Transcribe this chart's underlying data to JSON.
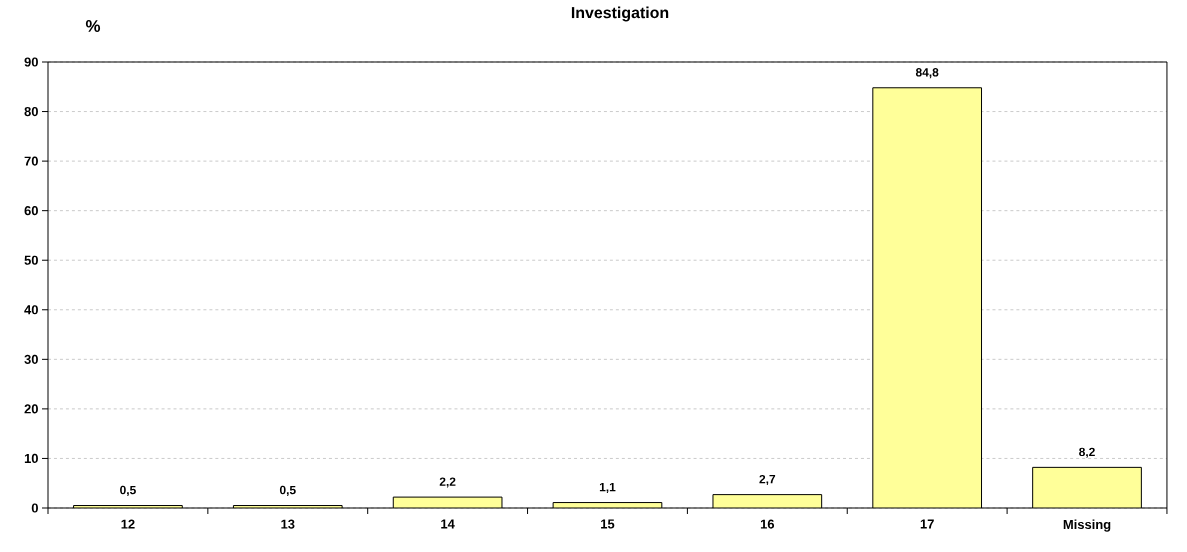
{
  "chart_data": {
    "type": "bar",
    "title": "Investigation",
    "ylabel": "%",
    "categories": [
      "12",
      "13",
      "14",
      "15",
      "16",
      "17",
      "Missing"
    ],
    "values": [
      0.5,
      0.5,
      2.2,
      1.1,
      2.7,
      84.8,
      8.2
    ],
    "value_labels": [
      "0,5",
      "0,5",
      "2,2",
      "1,1",
      "2,7",
      "84,8",
      "8,2"
    ],
    "color": "#ffff99",
    "ylim": [
      0,
      90
    ],
    "yticks": [
      0,
      10,
      20,
      30,
      40,
      50,
      60,
      70,
      80,
      90
    ],
    "grid": "y",
    "legend": false
  }
}
